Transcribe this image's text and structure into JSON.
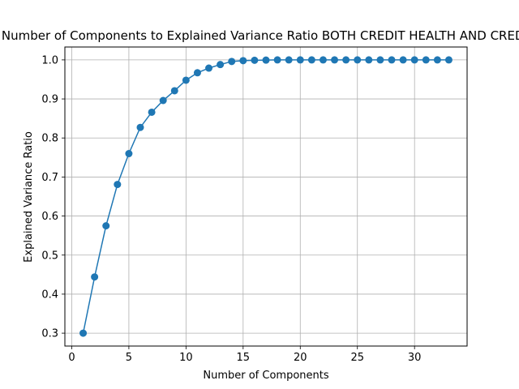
{
  "chart_data": {
    "type": "line",
    "title": "Number of Components to Explained Variance Ratio BOTH CREDIT HEALTH AND CREDIT",
    "xlabel": "Number of Components",
    "ylabel": "Explained Variance Ratio",
    "xlim": [
      -0.6,
      34.6
    ],
    "ylim": [
      0.267,
      1.033
    ],
    "xticks": [
      0,
      5,
      10,
      15,
      20,
      25,
      30
    ],
    "yticks": [
      0.3,
      0.4,
      0.5,
      0.6,
      0.7,
      0.8,
      0.9,
      1.0
    ],
    "ytick_labels": [
      "0.3",
      "0.4",
      "0.5",
      "0.6",
      "0.7",
      "0.8",
      "0.9",
      "1.0"
    ],
    "grid": true,
    "colors": {
      "series": "#1f77b4",
      "grid": "#b0b0b0",
      "axes": "#000000"
    },
    "series": [
      {
        "marker": "circle",
        "x": [
          1,
          2,
          3,
          4,
          5,
          6,
          7,
          8,
          9,
          10,
          11,
          12,
          13,
          14,
          15,
          16,
          17,
          18,
          19,
          20,
          21,
          22,
          23,
          24,
          25,
          26,
          27,
          28,
          29,
          30,
          31,
          32,
          33
        ],
        "y": [
          0.3,
          0.444,
          0.575,
          0.681,
          0.76,
          0.827,
          0.866,
          0.896,
          0.921,
          0.948,
          0.967,
          0.979,
          0.988,
          0.996,
          0.998,
          0.999,
          0.9995,
          1.0,
          1.0,
          1.0,
          1.0,
          1.0,
          1.0,
          1.0,
          1.0,
          1.0,
          1.0,
          1.0,
          1.0,
          1.0,
          1.0,
          1.0,
          1.0
        ]
      }
    ]
  }
}
